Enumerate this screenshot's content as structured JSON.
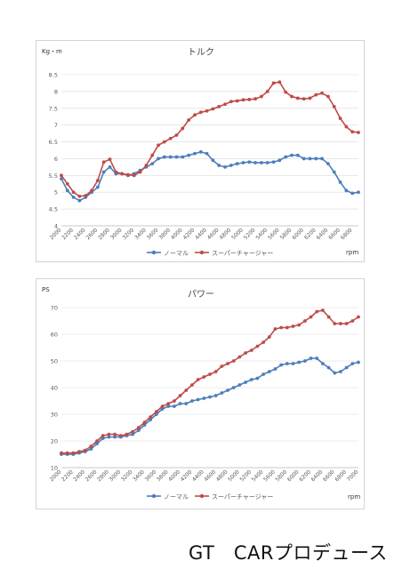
{
  "footer": {
    "brand": "GT　CARプロデュース"
  },
  "colors": {
    "normal": "#4a7ebb",
    "supercharger": "#be4b48",
    "grid": "#d9d9d9",
    "axis_text": "#595959"
  },
  "chart_data": [
    {
      "type": "line",
      "title": "トルク",
      "ylabel": "Kg・m",
      "xlabel": "rpm",
      "ylim": [
        4,
        8.5
      ],
      "ytick_step": 0.5,
      "x_tick_labels": [
        "2000",
        "2200",
        "2400",
        "2600",
        "2800",
        "3000",
        "3200",
        "3400",
        "3600",
        "3800",
        "4000",
        "4200",
        "4400",
        "4600",
        "4800",
        "5000",
        "5200",
        "5400",
        "5600",
        "5800",
        "6000",
        "6200",
        "6400",
        "6600",
        "6800"
      ],
      "x": [
        2000,
        2100,
        2200,
        2300,
        2400,
        2500,
        2600,
        2700,
        2800,
        2900,
        3000,
        3100,
        3200,
        3300,
        3400,
        3500,
        3600,
        3700,
        3800,
        3900,
        4000,
        4100,
        4200,
        4300,
        4400,
        4500,
        4600,
        4700,
        4800,
        4900,
        5000,
        5100,
        5200,
        5300,
        5400,
        5500,
        5600,
        5700,
        5800,
        5900,
        6000,
        6100,
        6200,
        6300,
        6400,
        6500,
        6600,
        6700,
        6800,
        6900
      ],
      "legend_position": "bottom",
      "series": [
        {
          "name": "ノーマル",
          "color_key": "normal",
          "values": [
            5.4,
            5.05,
            4.85,
            4.75,
            4.85,
            5.0,
            5.15,
            5.6,
            5.75,
            5.55,
            5.55,
            5.5,
            5.55,
            5.65,
            5.75,
            5.85,
            6.0,
            6.05,
            6.05,
            6.05,
            6.05,
            6.1,
            6.15,
            6.2,
            6.15,
            5.95,
            5.8,
            5.75,
            5.8,
            5.85,
            5.88,
            5.9,
            5.88,
            5.88,
            5.88,
            5.9,
            5.95,
            6.05,
            6.1,
            6.1,
            6.0,
            6.0,
            6.0,
            6.0,
            5.85,
            5.6,
            5.3,
            5.05,
            4.97,
            5.0
          ]
        },
        {
          "name": "スーパーチャージャー",
          "color_key": "supercharger",
          "values": [
            5.5,
            5.25,
            5.0,
            4.88,
            4.9,
            5.05,
            5.35,
            5.9,
            5.98,
            5.6,
            5.55,
            5.52,
            5.5,
            5.6,
            5.8,
            6.1,
            6.4,
            6.5,
            6.6,
            6.7,
            6.9,
            7.15,
            7.3,
            7.38,
            7.42,
            7.48,
            7.55,
            7.62,
            7.7,
            7.72,
            7.75,
            7.76,
            7.78,
            7.85,
            8.0,
            8.25,
            8.28,
            7.98,
            7.85,
            7.8,
            7.78,
            7.8,
            7.9,
            7.95,
            7.85,
            7.55,
            7.2,
            6.95,
            6.8,
            6.78
          ]
        }
      ]
    },
    {
      "type": "line",
      "title": "パワー",
      "ylabel": "PS",
      "xlabel": "rpm",
      "ylim": [
        10,
        70
      ],
      "ytick_step": 10,
      "x_tick_labels": [
        "2000",
        "2200",
        "2400",
        "2600",
        "2800",
        "3000",
        "3200",
        "3400",
        "3600",
        "3800",
        "4000",
        "4200",
        "4400",
        "4600",
        "4800",
        "5000",
        "5200",
        "5400",
        "5600",
        "5800",
        "6000",
        "6200",
        "6400",
        "6600",
        "6800",
        "7000"
      ],
      "x": [
        2000,
        2100,
        2200,
        2300,
        2400,
        2500,
        2600,
        2700,
        2800,
        2900,
        3000,
        3100,
        3200,
        3300,
        3400,
        3500,
        3600,
        3700,
        3800,
        3900,
        4000,
        4100,
        4200,
        4300,
        4400,
        4500,
        4600,
        4700,
        4800,
        4900,
        5000,
        5100,
        5200,
        5300,
        5400,
        5500,
        5600,
        5700,
        5800,
        5900,
        6000,
        6100,
        6200,
        6300,
        6400,
        6500,
        6600,
        6700,
        6800,
        6900,
        7000
      ],
      "legend_position": "bottom",
      "series": [
        {
          "name": "ノーマル",
          "color_key": "normal",
          "values": [
            15,
            15,
            15,
            15.5,
            16,
            17,
            19,
            21,
            21.5,
            21.5,
            21.5,
            22,
            22.5,
            24,
            26,
            28,
            30,
            32,
            33,
            33,
            34,
            34,
            35,
            35.5,
            36,
            36.5,
            37,
            38,
            39,
            40,
            41,
            42,
            43,
            43.5,
            45,
            46,
            47,
            48.5,
            49,
            49,
            49.5,
            50,
            51,
            51,
            49,
            47.5,
            45.5,
            46,
            47.5,
            49,
            49.5
          ]
        },
        {
          "name": "スーパーチャージャー",
          "color_key": "supercharger",
          "values": [
            15.5,
            15.5,
            15.5,
            16,
            16.5,
            18,
            20,
            22,
            22.5,
            22.5,
            22,
            22.5,
            23.5,
            25,
            27,
            29,
            31,
            33,
            34,
            35,
            37,
            39,
            41,
            43,
            44,
            45,
            46,
            48,
            49,
            50,
            51.5,
            53,
            54,
            55.5,
            57,
            59,
            62,
            62.5,
            62.5,
            63,
            63.5,
            65,
            66.5,
            68.5,
            69,
            66.5,
            64,
            64,
            64,
            65,
            66.5
          ]
        }
      ]
    }
  ]
}
